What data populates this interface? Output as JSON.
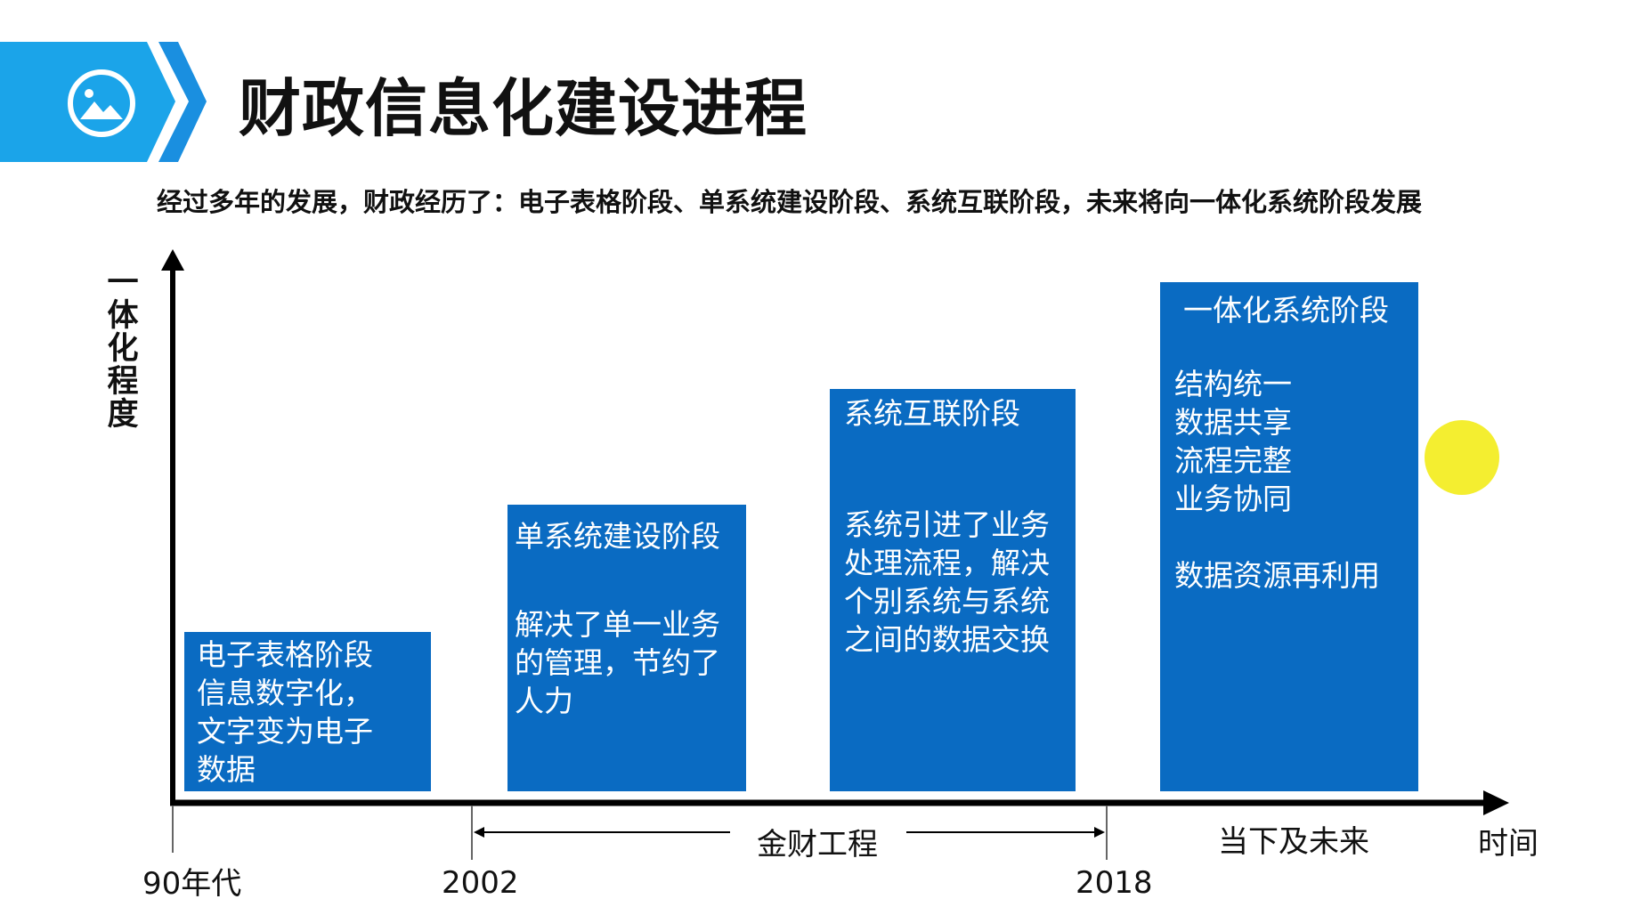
{
  "title": "财政信息化建设进程",
  "subtitle": "经过多年的发展，财政经历了：电子表格阶段、单系统建设阶段、系统互联阶段，未来将向一体化系统阶段发展",
  "y_axis_label": "一体化程度",
  "x_axis_label": "时间",
  "colors": {
    "header": "#1ba4e9",
    "box": "#0a6bc2",
    "highlight": "#f3ec1a"
  },
  "header_icon": "image-icon",
  "stages": [
    {
      "title": "电子表格阶段",
      "lines": [
        "信息数字化，",
        "文字变为电子",
        "数据"
      ]
    },
    {
      "title": "单系统建设阶段",
      "lines": [
        "解决了单一业务",
        "的管理，节约了",
        "人力"
      ]
    },
    {
      "title": "系统互联阶段",
      "lines": [
        "系统引进了业务",
        "处理流程，解决",
        "个别系统与系统",
        "之间的数据交换"
      ]
    },
    {
      "title": "一体化系统阶段",
      "lines": [
        "结构统一",
        "数据共享",
        "流程完整",
        "业务协同",
        "",
        "数据资源再利用"
      ]
    }
  ],
  "ticks": [
    "90年代",
    "2002",
    "2018"
  ],
  "spans": {
    "jincai": "金财工程",
    "future": "当下及未来"
  }
}
